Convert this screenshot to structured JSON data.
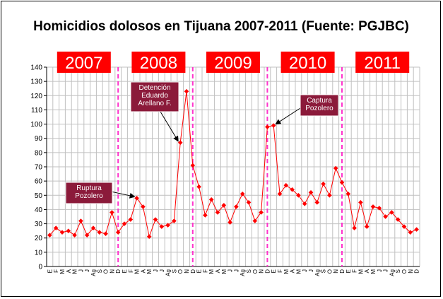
{
  "chart_data": {
    "type": "line",
    "title": "Homicidios dolosos en Tijuana 2007-2011 (Fuente: PGJBC)",
    "xlabel": "",
    "ylabel": "",
    "ylim": [
      0,
      140
    ],
    "ytick_step": 10,
    "grid": true,
    "month_labels": [
      "E",
      "F",
      "M",
      "A",
      "M",
      "J",
      "J",
      "Ag",
      "S",
      "O",
      "N",
      "D"
    ],
    "years": [
      "2007",
      "2008",
      "2009",
      "2010",
      "2011"
    ],
    "series": [
      {
        "name": "",
        "color": "#ff0000",
        "values": [
          22,
          27,
          24,
          25,
          22,
          32,
          22,
          27,
          24,
          23,
          38,
          24,
          30,
          33,
          48,
          42,
          21,
          33,
          28,
          29,
          32,
          87,
          123,
          71,
          56,
          36,
          47,
          38,
          43,
          31,
          42,
          51,
          45,
          32,
          38,
          98,
          99,
          51,
          57,
          54,
          50,
          44,
          52,
          45,
          58,
          50,
          69,
          59,
          51,
          27,
          45,
          28,
          42,
          41,
          35,
          38,
          33,
          28,
          24,
          26
        ]
      }
    ],
    "annotations": [
      {
        "lines": [
          "Ruptura",
          "Pozolero"
        ],
        "target_index": 14
      },
      {
        "lines": [
          "Detención",
          "Eduardo",
          "Arellano F."
        ],
        "target_index": 21
      },
      {
        "lines": [
          "Captura",
          "Pozolero"
        ],
        "target_index": 36
      }
    ],
    "colors": {
      "line": "#ff0000",
      "year_box": "#ff0000",
      "annotation_box": "#8b1a3a",
      "year_divider": "#ff33cc",
      "grid": "#c0c0c0"
    }
  }
}
